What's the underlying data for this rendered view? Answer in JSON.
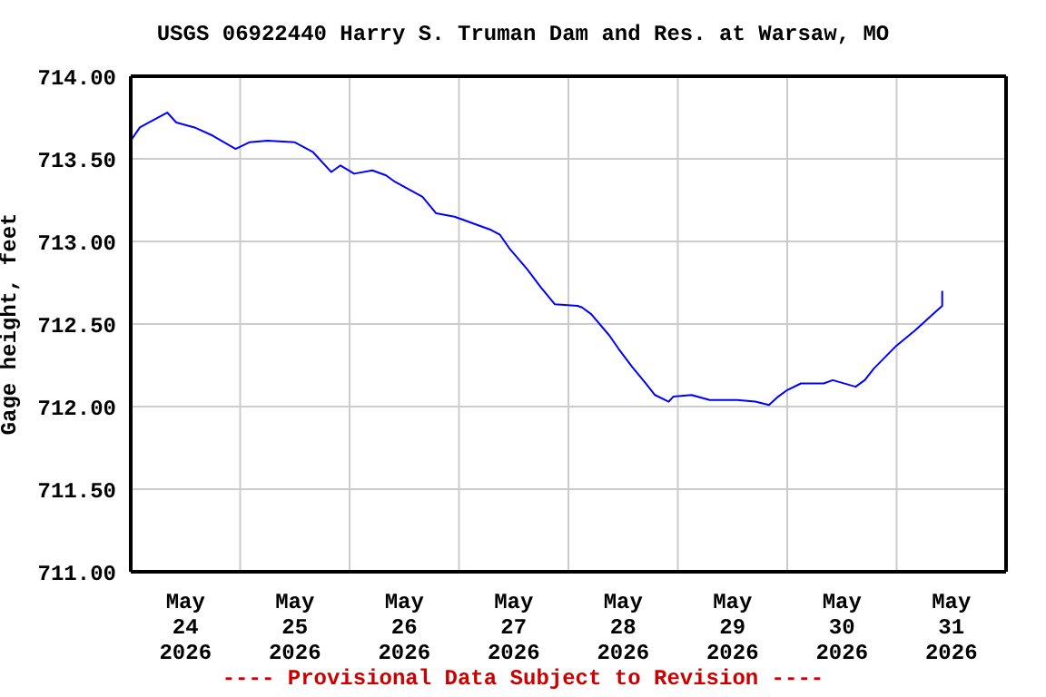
{
  "chart_data": {
    "type": "line",
    "title": "USGS 06922440 Harry S. Truman Dam and Res. at Warsaw, MO",
    "ylabel": "Gage height, feet",
    "annotations": [
      "---- Provisional Data Subject to Revision ----"
    ],
    "x": [
      "2026-05-24T00:00",
      "2026-05-24T02:00",
      "2026-05-24T04:00",
      "2026-05-24T08:00",
      "2026-05-24T10:00",
      "2026-05-24T14:00",
      "2026-05-24T18:00",
      "2026-05-24T23:00",
      "2026-05-25T02:00",
      "2026-05-25T06:00",
      "2026-05-25T12:00",
      "2026-05-25T16:00",
      "2026-05-25T20:00",
      "2026-05-25T22:00",
      "2026-05-26T01:00",
      "2026-05-26T05:00",
      "2026-05-26T08:00",
      "2026-05-26T10:00",
      "2026-05-26T14:00",
      "2026-05-26T16:00",
      "2026-05-26T19:00",
      "2026-05-26T23:00",
      "2026-05-27T03:00",
      "2026-05-27T07:00",
      "2026-05-27T09:00",
      "2026-05-27T11:00",
      "2026-05-27T15:00",
      "2026-05-27T18:00",
      "2026-05-27T21:00",
      "2026-05-28T02:00",
      "2026-05-28T03:00",
      "2026-05-28T05:00",
      "2026-05-28T09:00",
      "2026-05-28T11:00",
      "2026-05-28T14:00",
      "2026-05-28T17:00",
      "2026-05-28T19:00",
      "2026-05-28T22:00",
      "2026-05-28T23:00",
      "2026-05-29T03:00",
      "2026-05-29T07:00",
      "2026-05-29T13:00",
      "2026-05-29T17:00",
      "2026-05-29T20:00",
      "2026-05-29T22:00",
      "2026-05-30T00:00",
      "2026-05-30T03:00",
      "2026-05-30T08:00",
      "2026-05-30T10:00",
      "2026-05-30T15:00",
      "2026-05-30T17:00",
      "2026-05-30T19:00",
      "2026-05-31T00:00",
      "2026-05-31T04:00",
      "2026-05-31T08:00",
      "2026-05-31T10:00",
      "2026-05-31T10:00"
    ],
    "series": [
      {
        "color": "#0000ff",
        "values": [
          713.61,
          713.69,
          713.72,
          713.78,
          713.72,
          713.69,
          713.64,
          713.56,
          713.6,
          713.61,
          713.6,
          713.54,
          713.42,
          713.46,
          713.41,
          713.43,
          713.4,
          713.36,
          713.3,
          713.27,
          713.17,
          713.15,
          713.11,
          713.07,
          713.04,
          712.96,
          712.83,
          712.72,
          712.62,
          712.61,
          712.6,
          712.56,
          712.43,
          712.35,
          712.24,
          712.14,
          712.07,
          712.03,
          712.06,
          712.07,
          712.04,
          712.04,
          712.03,
          712.01,
          712.06,
          712.1,
          712.14,
          712.14,
          712.16,
          712.12,
          712.16,
          712.23,
          712.37,
          712.46,
          712.56,
          712.61,
          712.7
        ]
      }
    ],
    "xlim": [
      "2026-05-24T00:00",
      "2026-06-01T00:00"
    ],
    "xticks": [
      {
        "value": "2026-05-24T12:00",
        "label": "May 24 2026"
      },
      {
        "value": "2026-05-25T12:00",
        "label": "May 25 2026"
      },
      {
        "value": "2026-05-26T12:00",
        "label": "May 26 2026"
      },
      {
        "value": "2026-05-27T12:00",
        "label": "May 27 2026"
      },
      {
        "value": "2026-05-28T12:00",
        "label": "May 28 2026"
      },
      {
        "value": "2026-05-29T12:00",
        "label": "May 29 2026"
      },
      {
        "value": "2026-05-30T12:00",
        "label": "May 30 2026"
      },
      {
        "value": "2026-05-31T12:00",
        "label": "May 31 2026"
      },
      {
        "value": "2026-05-25T00:00",
        "label": null
      },
      {
        "value": "2026-05-26T00:00",
        "label": null
      },
      {
        "value": "2026-05-27T00:00",
        "label": null
      },
      {
        "value": "2026-05-28T00:00",
        "label": null
      },
      {
        "value": "2026-05-29T00:00",
        "label": null
      },
      {
        "value": "2026-05-30T00:00",
        "label": null
      },
      {
        "value": "2026-05-31T00:00",
        "label": null
      }
    ],
    "ylim": [
      711,
      714
    ],
    "yticks": [
      {
        "value": 711,
        "label": "711.00"
      },
      {
        "value": 711.5,
        "label": "711.50"
      },
      {
        "value": 712,
        "label": "712.00"
      },
      {
        "value": 712.5,
        "label": "712.50"
      },
      {
        "value": 713,
        "label": "713.00"
      },
      {
        "value": 713.5,
        "label": "713.50"
      },
      {
        "value": 714,
        "label": "714.00"
      }
    ],
    "grid": true,
    "marker": "none",
    "line_style": "solid"
  }
}
